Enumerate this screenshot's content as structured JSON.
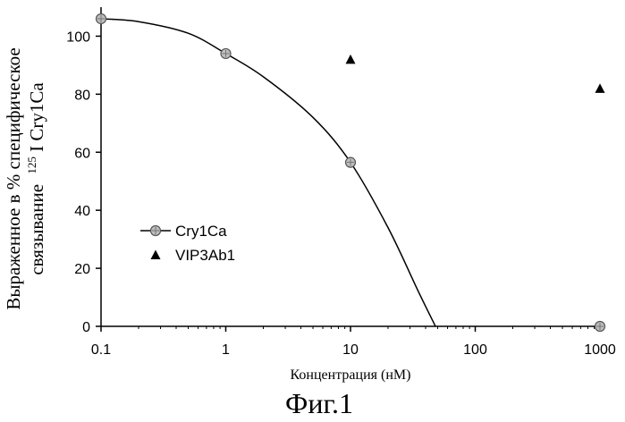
{
  "chart_data": {
    "type": "scatter",
    "x_scale": "log",
    "xlim": [
      0.1,
      1000
    ],
    "ylim": [
      0,
      110
    ],
    "x_ticks": [
      0.1,
      1,
      10,
      100,
      1000
    ],
    "x_tick_labels": [
      "0.1",
      "1",
      "10",
      "100",
      "1000"
    ],
    "y_ticks": [
      0,
      20,
      40,
      60,
      80,
      100
    ],
    "y_tick_labels": [
      "0",
      "20",
      "40",
      "60",
      "80",
      "100"
    ],
    "xlabel": "Концентрация (нМ)",
    "ylabel_line1": "Выраженное в % специфическое",
    "ylabel_line2_prefix": "связывание",
    "ylabel_line2_sup": "125",
    "ylabel_line2_suffix": "I Cry1Ca",
    "legend_position": "left-middle",
    "series": [
      {
        "name": "Cry1Ca",
        "marker": "circle",
        "color": "#000000",
        "points": [
          {
            "x": 0.1,
            "y": 106
          },
          {
            "x": 1,
            "y": 94
          },
          {
            "x": 10,
            "y": 56.5
          },
          {
            "x": 1000,
            "y": 0
          }
        ],
        "fit_curve": [
          {
            "x": 0.1,
            "y": 106
          },
          {
            "x": 0.2,
            "y": 105
          },
          {
            "x": 0.5,
            "y": 101
          },
          {
            "x": 1,
            "y": 94
          },
          {
            "x": 2,
            "y": 86
          },
          {
            "x": 5,
            "y": 72
          },
          {
            "x": 10,
            "y": 56.5
          },
          {
            "x": 20,
            "y": 34
          },
          {
            "x": 35,
            "y": 12
          },
          {
            "x": 48,
            "y": 0
          }
        ]
      },
      {
        "name": "VIP3Ab1",
        "marker": "triangle",
        "color": "#000000",
        "points": [
          {
            "x": 10,
            "y": 92
          },
          {
            "x": 1000,
            "y": 82
          }
        ]
      }
    ]
  },
  "caption": "Фиг.1"
}
